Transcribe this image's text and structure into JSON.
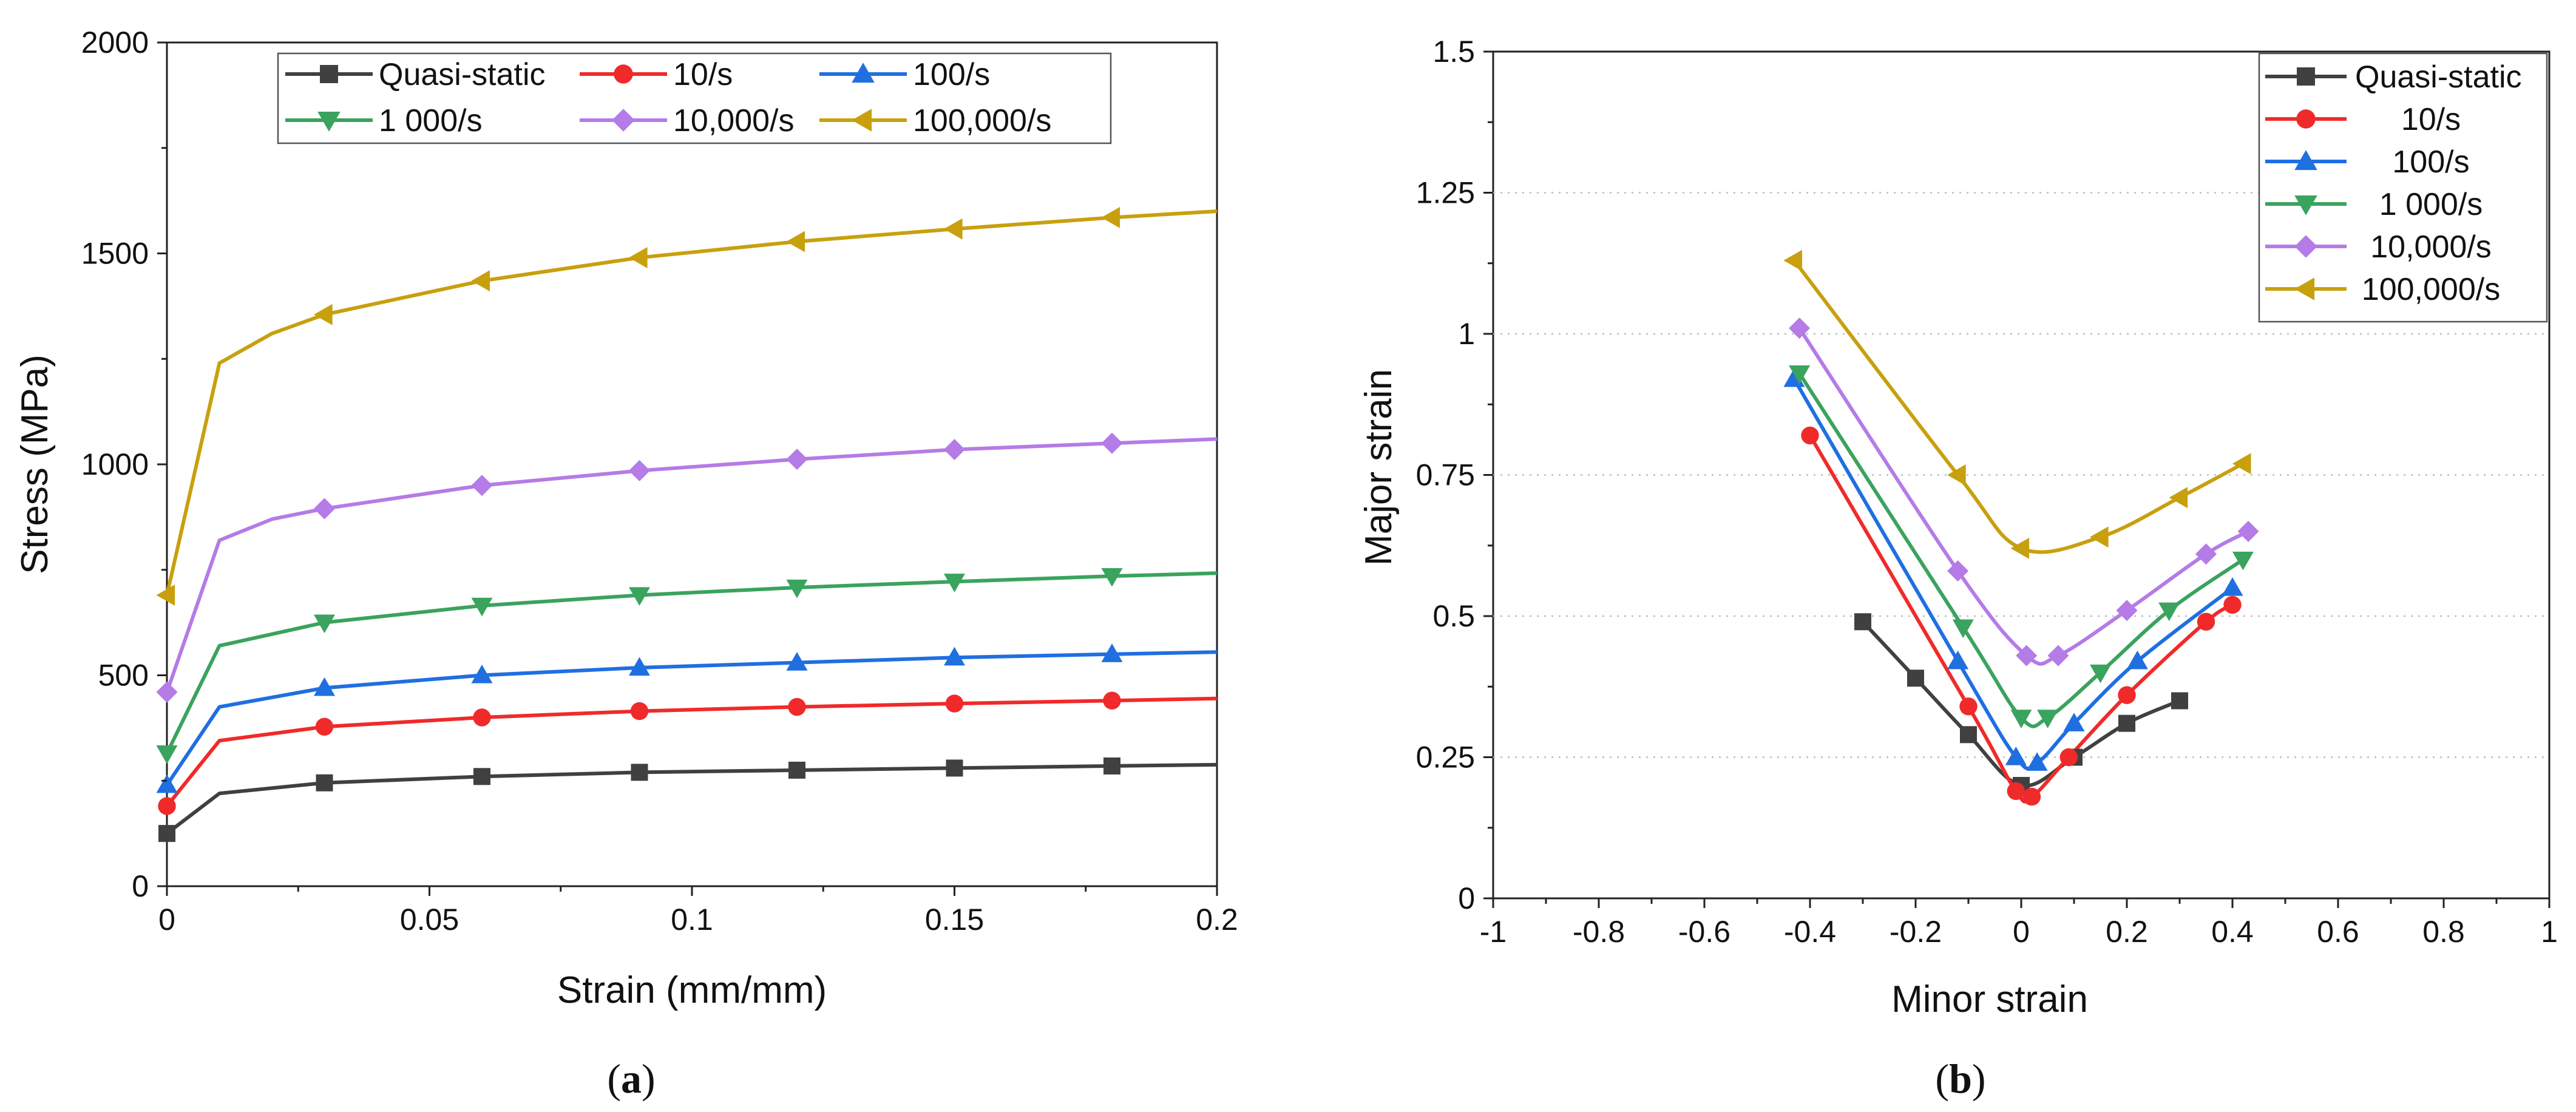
{
  "chart_data": [
    {
      "type": "line",
      "caption_letter": "a",
      "xlabel": "Strain (mm/mm)",
      "ylabel": "Stress (MPa)",
      "xlim": [
        0,
        0.2
      ],
      "ylim": [
        0,
        2000
      ],
      "xticks": [
        0,
        0.05,
        0.1,
        0.15,
        0.2
      ],
      "xtick_labels": [
        "0",
        "0.05",
        "0.1",
        "0.15",
        "0.2"
      ],
      "yticks": [
        0,
        500,
        1000,
        1500,
        2000
      ],
      "ytick_labels": [
        "0",
        "500",
        "1000",
        "1500",
        "2000"
      ],
      "grid": false,
      "legend_position": "top",
      "series": [
        {
          "name": "Quasi-static",
          "color": "#404040",
          "marker": "square",
          "x": [
            0,
            0.01,
            0.03,
            0.06,
            0.09,
            0.12,
            0.15,
            0.18,
            0.2
          ],
          "y": [
            125,
            220,
            245,
            260,
            270,
            275,
            280,
            285,
            288
          ],
          "marker_x": [
            0,
            0.03,
            0.06,
            0.09,
            0.12,
            0.15,
            0.18
          ],
          "marker_y": [
            125,
            245,
            260,
            270,
            275,
            280,
            285
          ]
        },
        {
          "name": "10/s",
          "color": "#f02a2a",
          "marker": "circle",
          "x": [
            0,
            0.01,
            0.03,
            0.06,
            0.09,
            0.12,
            0.15,
            0.18,
            0.2
          ],
          "y": [
            190,
            345,
            378,
            400,
            415,
            425,
            433,
            440,
            445
          ],
          "marker_x": [
            0,
            0.03,
            0.06,
            0.09,
            0.12,
            0.15,
            0.18
          ],
          "marker_y": [
            190,
            378,
            400,
            415,
            425,
            433,
            440
          ]
        },
        {
          "name": "100/s",
          "color": "#1f6fe0",
          "marker": "triangle-up",
          "x": [
            0,
            0.01,
            0.03,
            0.06,
            0.09,
            0.12,
            0.15,
            0.18,
            0.2
          ],
          "y": [
            240,
            425,
            470,
            500,
            518,
            530,
            542,
            550,
            555
          ],
          "marker_x": [
            0,
            0.03,
            0.06,
            0.09,
            0.12,
            0.15,
            0.18
          ],
          "marker_y": [
            240,
            470,
            500,
            518,
            530,
            542,
            550
          ]
        },
        {
          "name": "1 000/s",
          "color": "#3aa35e",
          "marker": "triangle-down",
          "x": [
            0,
            0.01,
            0.03,
            0.06,
            0.09,
            0.12,
            0.15,
            0.18,
            0.2
          ],
          "y": [
            315,
            570,
            625,
            665,
            690,
            708,
            722,
            735,
            742
          ],
          "marker_x": [
            0,
            0.03,
            0.06,
            0.09,
            0.12,
            0.15,
            0.18
          ],
          "marker_y": [
            315,
            625,
            665,
            690,
            708,
            722,
            735
          ]
        },
        {
          "name": "10,000/s",
          "color": "#b57be6",
          "marker": "diamond",
          "x": [
            0,
            0.01,
            0.02,
            0.03,
            0.06,
            0.09,
            0.12,
            0.15,
            0.18,
            0.2
          ],
          "y": [
            460,
            820,
            870,
            895,
            950,
            985,
            1012,
            1035,
            1050,
            1060
          ],
          "marker_x": [
            0,
            0.03,
            0.06,
            0.09,
            0.12,
            0.15,
            0.18
          ],
          "marker_y": [
            460,
            895,
            950,
            985,
            1012,
            1035,
            1050
          ]
        },
        {
          "name": "100,000/s",
          "color": "#c8a00e",
          "marker": "triangle-left",
          "x": [
            0,
            0.01,
            0.02,
            0.03,
            0.06,
            0.09,
            0.12,
            0.15,
            0.18,
            0.2
          ],
          "y": [
            690,
            1240,
            1310,
            1355,
            1435,
            1490,
            1528,
            1558,
            1585,
            1600
          ],
          "marker_x": [
            0,
            0.03,
            0.06,
            0.09,
            0.12,
            0.15,
            0.18
          ],
          "marker_y": [
            690,
            1355,
            1435,
            1490,
            1528,
            1558,
            1585
          ]
        }
      ]
    },
    {
      "type": "line",
      "caption_letter": "b",
      "xlabel": "Minor strain",
      "ylabel": "Major strain",
      "xlim": [
        -1,
        1
      ],
      "ylim": [
        0,
        1.5
      ],
      "xticks": [
        -1,
        -0.8,
        -0.6,
        -0.4,
        -0.2,
        0,
        0.2,
        0.4,
        0.6,
        0.8,
        1
      ],
      "xtick_labels": [
        "-1",
        "-0.8",
        "-0.6",
        "-0.4",
        "-0.2",
        "0",
        "0.2",
        "0.4",
        "0.6",
        "0.8",
        "1"
      ],
      "yticks": [
        0,
        0.25,
        0.5,
        0.75,
        1,
        1.25,
        1.5
      ],
      "ytick_labels": [
        "0",
        "0.25",
        "0.5",
        "0.75",
        "1",
        "1.25",
        "1.5"
      ],
      "grid": true,
      "legend_position": "top-right",
      "series": [
        {
          "name": "Quasi-static",
          "color": "#404040",
          "marker": "square",
          "x": [
            -0.3,
            -0.2,
            -0.1,
            0,
            0.1,
            0.2,
            0.3
          ],
          "y": [
            0.49,
            0.39,
            0.29,
            0.2,
            0.25,
            0.31,
            0.35
          ]
        },
        {
          "name": "10/s",
          "color": "#f02a2a",
          "marker": "circle",
          "x": [
            -0.4,
            -0.1,
            -0.01,
            0.02,
            0.09,
            0.2,
            0.35,
            0.4
          ],
          "y": [
            0.82,
            0.34,
            0.19,
            0.18,
            0.25,
            0.36,
            0.49,
            0.52
          ]
        },
        {
          "name": "100/s",
          "color": "#1f6fe0",
          "marker": "triangle-up",
          "x": [
            -0.43,
            -0.12,
            -0.01,
            0.03,
            0.1,
            0.22,
            0.4
          ],
          "y": [
            0.92,
            0.42,
            0.25,
            0.24,
            0.31,
            0.42,
            0.55
          ]
        },
        {
          "name": "1 000/s",
          "color": "#3aa35e",
          "marker": "triangle-down",
          "x": [
            -0.42,
            -0.11,
            0,
            0.05,
            0.15,
            0.28,
            0.42
          ],
          "y": [
            0.93,
            0.48,
            0.32,
            0.32,
            0.4,
            0.51,
            0.6
          ]
        },
        {
          "name": "10,000/s",
          "color": "#b57be6",
          "marker": "diamond",
          "x": [
            -0.42,
            -0.12,
            0.01,
            0.07,
            0.2,
            0.35,
            0.43
          ],
          "y": [
            1.01,
            0.58,
            0.43,
            0.43,
            0.51,
            0.61,
            0.65
          ]
        },
        {
          "name": "100,000/s",
          "color": "#c8a00e",
          "marker": "triangle-left",
          "x": [
            -0.43,
            -0.12,
            0,
            0.15,
            0.3,
            0.42
          ],
          "y": [
            1.13,
            0.75,
            0.62,
            0.64,
            0.71,
            0.77
          ]
        }
      ]
    }
  ]
}
